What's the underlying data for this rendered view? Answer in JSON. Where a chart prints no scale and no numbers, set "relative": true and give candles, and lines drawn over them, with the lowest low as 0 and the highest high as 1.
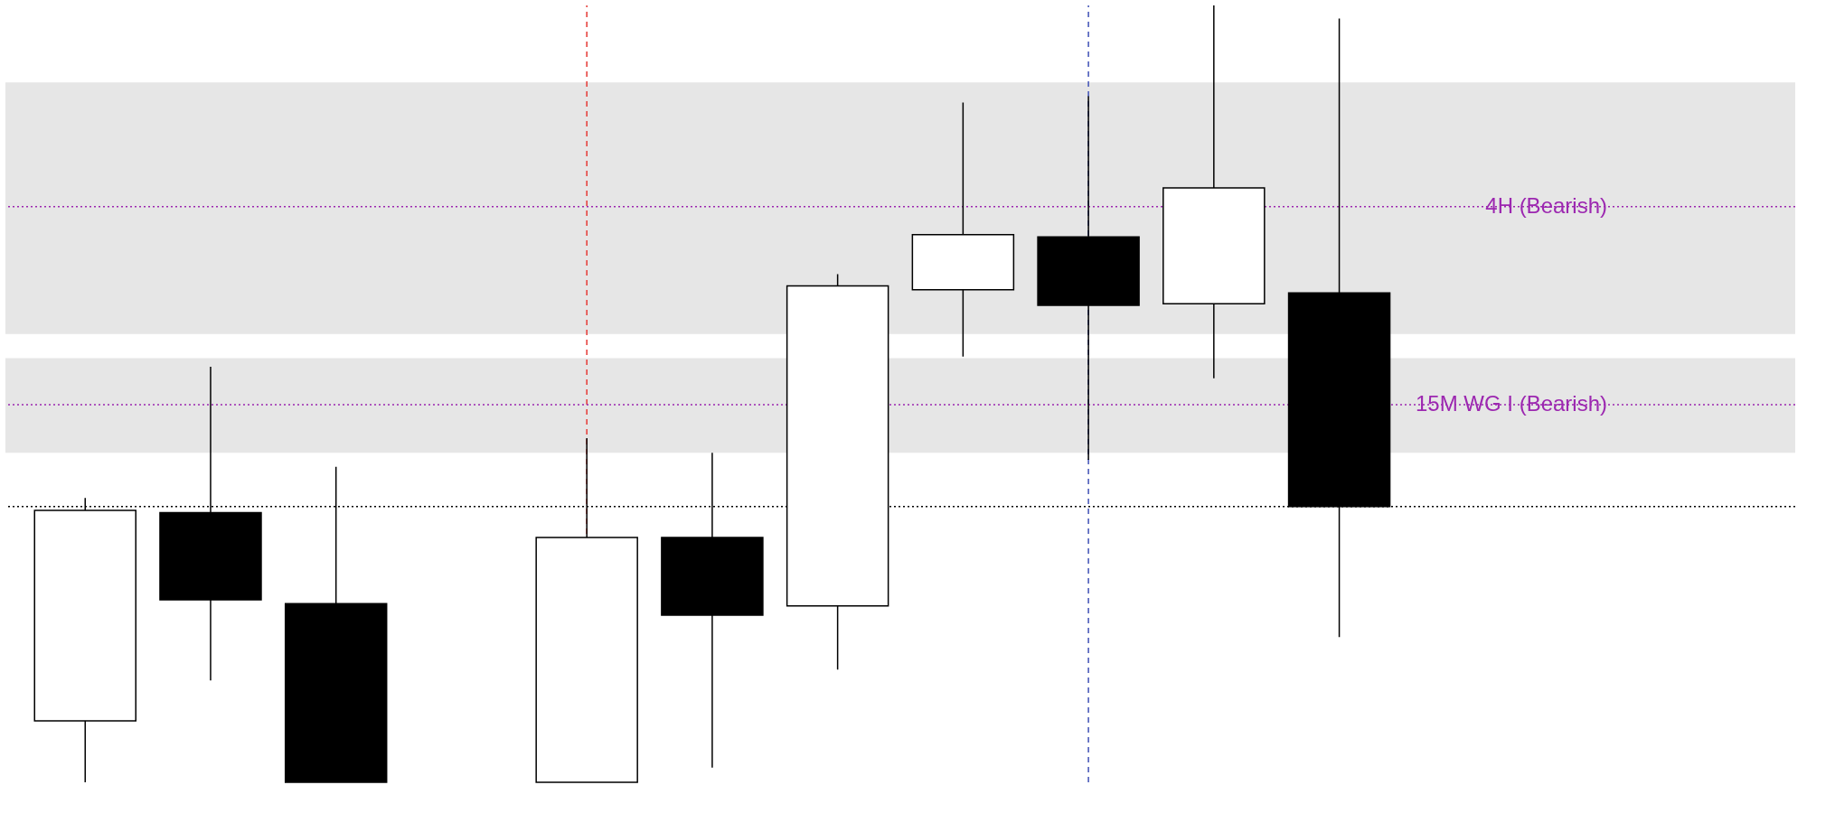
{
  "chart_data": {
    "type": "candlestick",
    "relative": true,
    "categories": [
      null,
      null,
      null,
      null,
      null,
      null,
      null,
      null,
      null,
      null,
      null,
      null,
      null,
      null
    ],
    "ohlc": [
      [
        0.079,
        0.366,
        0,
        0.35
      ],
      [
        0.347,
        0.535,
        0.131,
        0.235
      ],
      [
        0.23,
        0.406,
        0,
        0
      ],
      null,
      [
        0,
        0.443,
        0,
        0.315
      ],
      [
        0.315,
        0.424,
        0.019,
        0.215
      ],
      [
        0.227,
        0.654,
        0.145,
        0.639
      ],
      [
        0.634,
        0.875,
        0.548,
        0.705
      ],
      [
        0.702,
        0.883,
        0.415,
        0.614
      ],
      [
        0.616,
        1.0,
        0.52,
        0.765
      ],
      [
        0.63,
        0.983,
        0.187,
        0.355
      ],
      null,
      null,
      null
    ],
    "bands": [
      {
        "axis": "y",
        "from": 0.577,
        "to": 0.901,
        "color": "#e6e6e6"
      },
      {
        "axis": "y",
        "from": 0.424,
        "to": 0.546,
        "color": "#e6e6e6"
      }
    ],
    "ref_lines": [
      {
        "axis": "y",
        "value": 0.741,
        "label": "4H (Bearish)",
        "color": "#9c27b0",
        "line_style": "dotted"
      },
      {
        "axis": "y",
        "value": 0.486,
        "label": "15M WG I (Bearish)",
        "color": "#9c27b0",
        "line_style": "dotted"
      },
      {
        "axis": "y",
        "value": 0.355,
        "color": "#000000",
        "line_style": "dotted"
      }
    ]
  }
}
